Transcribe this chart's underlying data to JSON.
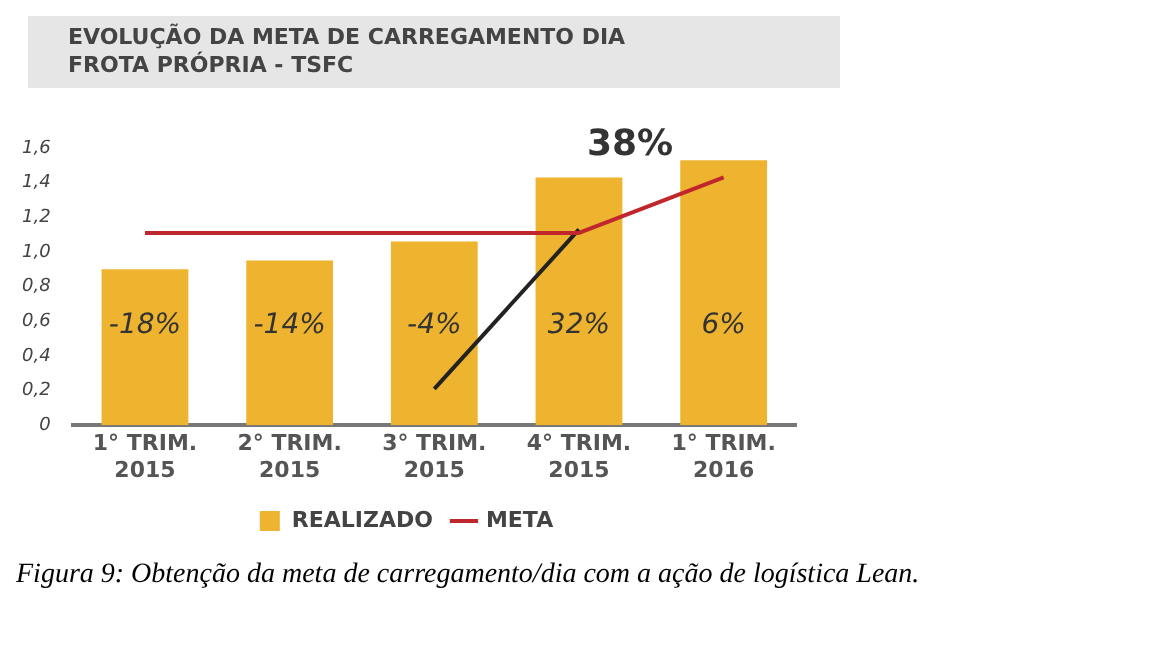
{
  "chart_data": {
    "type": "bar",
    "title": "EVOLUÇÃO DA META DE CARREGAMENTO DIA\nFROTA PRÓPRIA - TSFC",
    "categories": [
      "1° TRIM. 2015",
      "2° TRIM. 2015",
      "3° TRIM. 2015",
      "4° TRIM. 2015",
      "1° TRIM. 2016"
    ],
    "series": [
      {
        "name": "REALIZADO",
        "color": "#efb42f",
        "values": [
          0.9,
          0.95,
          1.06,
          1.43,
          1.53
        ]
      },
      {
        "name": "META",
        "type": "line",
        "color": "#c0272d",
        "values": [
          1.11,
          1.11,
          1.11,
          1.11,
          1.43
        ]
      },
      {
        "type": "line",
        "color": "#222222",
        "values": [
          null,
          null,
          0.21,
          1.13,
          null
        ]
      }
    ],
    "ylim": [
      0,
      1.6
    ],
    "yticks": [
      {
        "value": 0,
        "label": "0"
      },
      {
        "value": 0.2,
        "label": "0,2"
      },
      {
        "value": 0.4,
        "label": "0,4"
      },
      {
        "value": 0.6,
        "label": "0,6"
      },
      {
        "value": 0.8,
        "label": "0,8"
      },
      {
        "value": 1,
        "label": "1,0"
      },
      {
        "value": 1.2,
        "label": "1,2"
      },
      {
        "value": 1.4,
        "label": "1,4"
      },
      {
        "value": 1.6,
        "label": "1,6"
      }
    ],
    "grid": false,
    "legend": "bottom",
    "marker": "none",
    "annotations": [
      "-18%",
      "-14%",
      "-4%",
      "32%",
      "6%",
      "38%",
      "Figura 9: Obtenção da meta de carregamento/dia com a ação de logística Lean."
    ]
  }
}
